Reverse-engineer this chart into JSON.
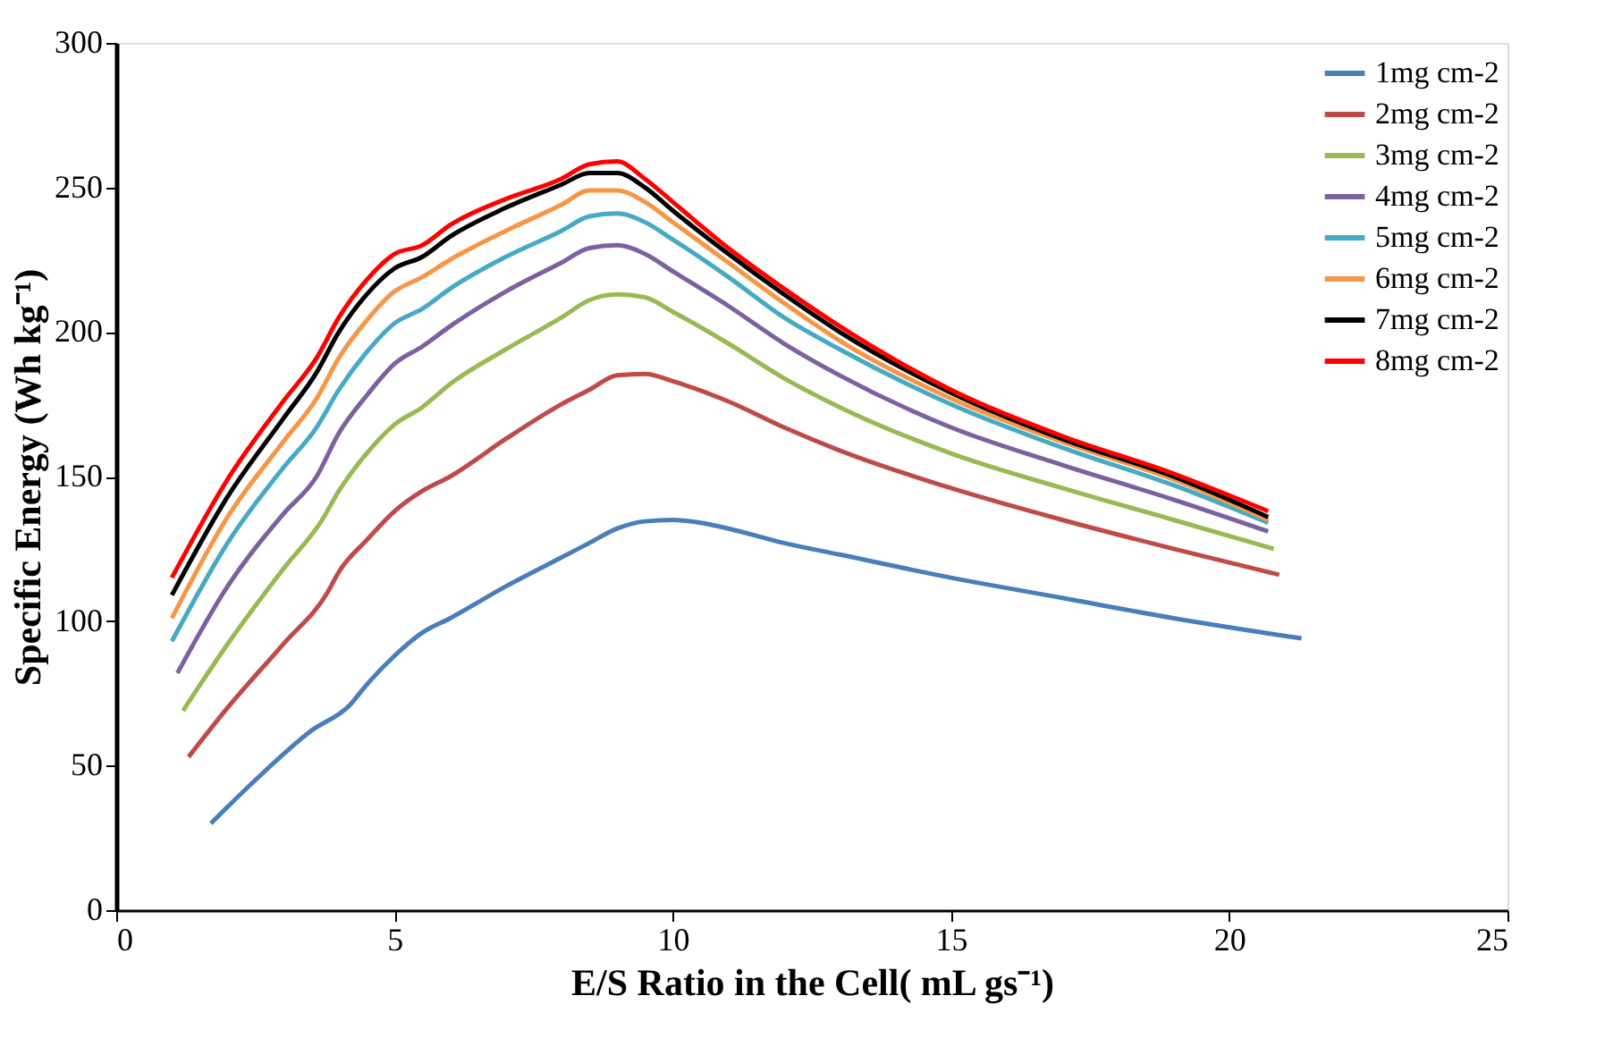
{
  "chart_data": {
    "type": "line",
    "xlabel": "E/S Ratio in the Cell( mL gs⁻¹)",
    "ylabel": "Specific Energy (Wh kg⁻¹)",
    "xlim": [
      0,
      25
    ],
    "xticks": [
      0,
      5,
      10,
      15,
      20,
      25
    ],
    "ylim": [
      0,
      300
    ],
    "yticks": [
      0,
      50,
      100,
      150,
      200,
      250,
      300
    ],
    "grid": false,
    "legend": "top right",
    "marker": "none",
    "line_style": "solid",
    "x": [
      1.0,
      2,
      3,
      3.6,
      4,
      4.5,
      5,
      5.5,
      6,
      7,
      8,
      8.5,
      9,
      9.5,
      10,
      11,
      12,
      13,
      15,
      17,
      19,
      20.7
    ],
    "series": [
      {
        "name": "1mg cm-2",
        "color": "#4a7ebb",
        "x": [
          1.7,
          2.5,
          3.5,
          4.2,
          4.5,
          5,
          5.5,
          6,
          7,
          8,
          8.5,
          9,
          9.5,
          10,
          10.5,
          11,
          12,
          13,
          15,
          17,
          19,
          21.3
        ],
        "values": [
          30,
          45,
          62,
          71,
          78,
          88,
          96,
          101,
          112,
          122,
          127,
          132,
          134.5,
          135,
          134,
          132,
          127,
          123,
          115,
          108,
          101,
          94
        ]
      },
      {
        "name": "2mg cm-2",
        "color": "#be4b48",
        "x": [
          1.3,
          2,
          3,
          3.8,
          4,
          4.5,
          5,
          5.5,
          6,
          7,
          8,
          8.5,
          9,
          9.5,
          10,
          11,
          12,
          13,
          15,
          17,
          19,
          20.9
        ],
        "values": [
          53,
          70,
          92,
          110,
          117,
          128,
          138,
          145,
          150,
          163,
          175,
          180,
          185,
          185.5,
          183,
          176,
          167,
          159,
          146,
          135,
          125,
          116
        ]
      },
      {
        "name": "3mg cm-2",
        "color": "#98b954",
        "x": [
          1.2,
          2,
          3,
          3.7,
          4,
          4.5,
          5,
          5.5,
          6,
          7,
          8,
          8.5,
          9,
          9.5,
          10,
          11,
          12,
          13,
          15,
          17,
          19,
          20.8
        ],
        "values": [
          69,
          92,
          118,
          135,
          145,
          158,
          168,
          174,
          182,
          194,
          205,
          211,
          213,
          212,
          207,
          196,
          184,
          174,
          158,
          146,
          135,
          125
        ]
      },
      {
        "name": "4mg cm-2",
        "color": "#7d60a0",
        "x": [
          1.1,
          2,
          3,
          3.6,
          4,
          4.5,
          5,
          5.5,
          6,
          7,
          8,
          8.5,
          9,
          9.5,
          10,
          11,
          12,
          13,
          15,
          17,
          19,
          20.7
        ],
        "values": [
          82,
          112,
          137,
          150,
          165,
          178,
          189,
          195,
          202,
          214,
          224,
          229,
          230,
          227,
          221,
          209,
          196,
          185,
          167,
          154,
          142,
          131
        ]
      },
      {
        "name": "5mg cm-2",
        "color": "#46aac5",
        "values": [
          93,
          127,
          153,
          167,
          180,
          193,
          203,
          208,
          215,
          226,
          235,
          240,
          241,
          238,
          232,
          219,
          205,
          194,
          175,
          160,
          147,
          134
        ]
      },
      {
        "name": "6mg cm-2",
        "color": "#f79646",
        "values": [
          101,
          136,
          162,
          177,
          191,
          204,
          214,
          219,
          225,
          235,
          244,
          249,
          249,
          245,
          238,
          224,
          210,
          197,
          177,
          162,
          149,
          135
        ]
      },
      {
        "name": "7mg cm-2",
        "color": "#000000",
        "values": [
          109,
          143,
          170,
          186,
          200,
          213,
          222,
          226,
          233,
          243,
          251,
          255,
          255,
          250,
          242,
          227,
          213,
          200,
          179,
          163,
          150,
          136
        ]
      },
      {
        "name": "8mg cm-2",
        "color": "#ff0000",
        "values": [
          115,
          149,
          176,
          191,
          205,
          218,
          227,
          230,
          237,
          246,
          253,
          258,
          259,
          253,
          245,
          229,
          215,
          202,
          180,
          164,
          151,
          138
        ]
      }
    ]
  }
}
